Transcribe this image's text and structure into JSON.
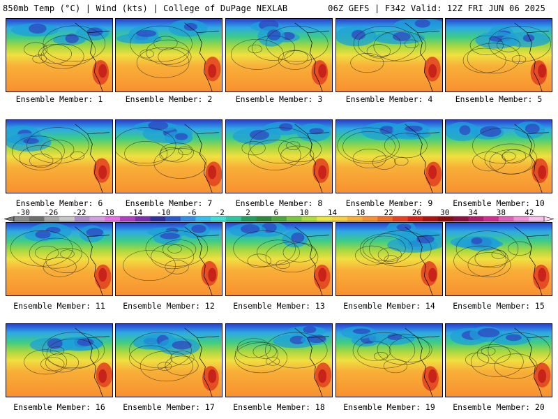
{
  "header": {
    "left": "850mb Temp (°C) | Wind (kts) | College of DuPage NEXLAB",
    "right": "06Z GEFS | F342 Valid: 12Z FRI JUN 06 2025"
  },
  "panels": [
    {
      "label": "Ensemble Member: 1"
    },
    {
      "label": "Ensemble Member: 2"
    },
    {
      "label": "Ensemble Member: 3"
    },
    {
      "label": "Ensemble Member: 4"
    },
    {
      "label": "Ensemble Member: 5"
    },
    {
      "label": "Ensemble Member: 6"
    },
    {
      "label": "Ensemble Member: 7"
    },
    {
      "label": "Ensemble Member: 8"
    },
    {
      "label": "Ensemble Member: 9"
    },
    {
      "label": "Ensemble Member: 10"
    },
    {
      "label": "Ensemble Member: 11"
    },
    {
      "label": "Ensemble Member: 12"
    },
    {
      "label": "Ensemble Member: 13"
    },
    {
      "label": "Ensemble Member: 14"
    },
    {
      "label": "Ensemble Member: 15"
    },
    {
      "label": "Ensemble Member: 16"
    },
    {
      "label": "Ensemble Member: 17"
    },
    {
      "label": "Ensemble Member: 18"
    },
    {
      "label": "Ensemble Member: 19"
    },
    {
      "label": "Ensemble Member: 20"
    }
  ],
  "colorbar": {
    "ticks": [
      "-30",
      "-26",
      "-22",
      "-18",
      "-14",
      "-10",
      "-6",
      "-2",
      "2",
      "6",
      "10",
      "14",
      "18",
      "22",
      "26",
      "30",
      "34",
      "38",
      "42"
    ],
    "colors": [
      "#8c8c8c",
      "#6e6e6e",
      "#a8a8a8",
      "#c8c8c8",
      "#b08cc8",
      "#d4a0e0",
      "#e670e6",
      "#b040c0",
      "#7a2fb0",
      "#3030a0",
      "#2a5ad0",
      "#2f8ee8",
      "#35c0f0",
      "#3ce0d8",
      "#2cc8a0",
      "#20a060",
      "#2c8a3c",
      "#4aa83c",
      "#7ac83c",
      "#b0dc3c",
      "#e8e840",
      "#f8d040",
      "#f8b038",
      "#f89030",
      "#f06a28",
      "#e84020",
      "#d82018",
      "#b01010",
      "#8c0c0c",
      "#8c1040",
      "#b01c6c",
      "#d03090",
      "#e060b8",
      "#f090d8",
      "#f8c0ec"
    ]
  }
}
